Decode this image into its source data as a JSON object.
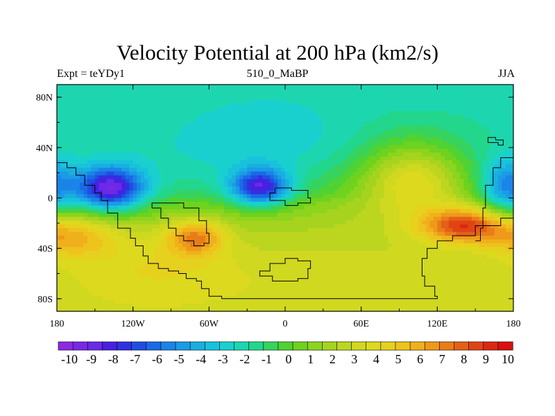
{
  "chart_data": {
    "type": "heatmap",
    "title": "Velocity Potential at 200 hPa (km2/s)",
    "subtitle_left": "Expt = teYDy1",
    "subtitle_center": "510_0_MaBP",
    "subtitle_right": "JJA",
    "xlim": [
      -180,
      180
    ],
    "ylim": [
      -90,
      90
    ],
    "x_ticks": [
      {
        "value": -180,
        "label": "180"
      },
      {
        "value": -120,
        "label": "120W"
      },
      {
        "value": -60,
        "label": "60W"
      },
      {
        "value": 0,
        "label": "0"
      },
      {
        "value": 60,
        "label": "60E"
      },
      {
        "value": 120,
        "label": "120E"
      },
      {
        "value": 180,
        "label": "180"
      }
    ],
    "y_ticks": [
      {
        "value": 80,
        "label": "80N"
      },
      {
        "value": 40,
        "label": "40N"
      },
      {
        "value": 0,
        "label": "0"
      },
      {
        "value": -40,
        "label": "40S"
      },
      {
        "value": -80,
        "label": "80S"
      }
    ],
    "colorbar": {
      "labels": [
        "-10",
        "-9",
        "-8",
        "-7",
        "-6",
        "-5",
        "-4",
        "-3",
        "-2",
        "-1",
        "0",
        "1",
        "2",
        "3",
        "4",
        "5",
        "6",
        "7",
        "8",
        "9",
        "10"
      ],
      "colors": [
        "#8a2be2",
        "#7a28e6",
        "#6a2ae8",
        "#4a1fe0",
        "#3030e0",
        "#1f4fe0",
        "#1a6ae6",
        "#1a84e8",
        "#1b9be6",
        "#19afe0",
        "#18c2dc",
        "#1ad0cf",
        "#1dd6b0",
        "#22d68c",
        "#36d35f",
        "#4fd234",
        "#6ed21e",
        "#8cd41e",
        "#a6d41e",
        "#bcd620",
        "#d0d820",
        "#dcd91e",
        "#e6d11e",
        "#eec31c",
        "#f0b01c",
        "#ee991a",
        "#ea7c18",
        "#e46016",
        "#e04414",
        "#dc2812",
        "#d81010"
      ]
    },
    "fields": [
      {
        "lon": -138,
        "lat": 8,
        "value": -9.0,
        "sx": 19,
        "sy": 12
      },
      {
        "lon": -20,
        "lat": 9,
        "value": -7.5,
        "sx": 16,
        "sy": 10
      },
      {
        "lon": 175,
        "lat": 10,
        "value": -5.0,
        "sx": 14,
        "sy": 16
      },
      {
        "lon": -90,
        "lat": 50,
        "value": -2.0,
        "sx": 70,
        "sy": 30
      },
      {
        "lon": -10,
        "lat": 55,
        "value": -2.5,
        "sx": 60,
        "sy": 28
      },
      {
        "lon": 140,
        "lat": -22,
        "value": 8.5,
        "sx": 24,
        "sy": 10
      },
      {
        "lon": -70,
        "lat": -32,
        "value": 6.5,
        "sx": 16,
        "sy": 10
      },
      {
        "lon": -170,
        "lat": -32,
        "value": 5.5,
        "sx": 25,
        "sy": 12
      },
      {
        "lon": 100,
        "lat": 10,
        "value": 4.5,
        "sx": 28,
        "sy": 22
      },
      {
        "lon": 0,
        "lat": -75,
        "value": 3.5,
        "sx": 170,
        "sy": 18
      },
      {
        "lon": -100,
        "lat": -55,
        "value": 4.0,
        "sx": 50,
        "sy": 25
      }
    ],
    "base_field": {
      "n_pole": -2.2,
      "s_pole": 3.6,
      "equator": 0.5
    },
    "coastlines": [
      [
        [
          -180,
          28
        ],
        [
          -172,
          24
        ],
        [
          -165,
          18
        ],
        [
          -158,
          10
        ],
        [
          -150,
          4
        ],
        [
          -145,
          -2
        ],
        [
          -140,
          -12
        ],
        [
          -132,
          -24
        ],
        [
          -122,
          -32
        ],
        [
          -118,
          -38
        ],
        [
          -112,
          -46
        ],
        [
          -108,
          -52
        ],
        [
          -100,
          -56
        ],
        [
          -92,
          -58
        ],
        [
          -84,
          -60
        ],
        [
          -78,
          -64
        ],
        [
          -70,
          -66
        ],
        [
          -66,
          -72
        ],
        [
          -60,
          -78
        ],
        [
          -50,
          -80
        ],
        [
          -30,
          -80
        ],
        [
          -10,
          -80
        ],
        [
          20,
          -80
        ],
        [
          60,
          -80
        ],
        [
          100,
          -80
        ],
        [
          120,
          -78
        ],
        [
          118,
          -70
        ],
        [
          110,
          -62
        ],
        [
          108,
          -48
        ],
        [
          112,
          -40
        ],
        [
          120,
          -34
        ],
        [
          132,
          -30
        ],
        [
          150,
          -22
        ],
        [
          170,
          -16
        ],
        [
          180,
          -14
        ]
      ],
      [
        [
          -105,
          -8
        ],
        [
          -98,
          -16
        ],
        [
          -92,
          -24
        ],
        [
          -86,
          -30
        ],
        [
          -80,
          -34
        ],
        [
          -72,
          -38
        ],
        [
          -64,
          -36
        ],
        [
          -60,
          -28
        ],
        [
          -62,
          -18
        ],
        [
          -68,
          -8
        ],
        [
          -80,
          -4
        ],
        [
          -94,
          -4
        ],
        [
          -105,
          -8
        ]
      ],
      [
        [
          -10,
          -52
        ],
        [
          0,
          -48
        ],
        [
          10,
          -50
        ],
        [
          20,
          -56
        ],
        [
          18,
          -64
        ],
        [
          10,
          -66
        ],
        [
          -10,
          -62
        ],
        [
          -20,
          -58
        ],
        [
          -12,
          -52
        ],
        [
          -10,
          -52
        ]
      ],
      [
        [
          -12,
          -2
        ],
        [
          0,
          -6
        ],
        [
          10,
          -4
        ],
        [
          20,
          0
        ],
        [
          18,
          6
        ],
        [
          5,
          8
        ],
        [
          -8,
          4
        ],
        [
          -12,
          -2
        ]
      ],
      [
        [
          150,
          -34
        ],
        [
          154,
          -24
        ],
        [
          156,
          -8
        ],
        [
          158,
          10
        ],
        [
          164,
          24
        ],
        [
          170,
          32
        ],
        [
          180,
          30
        ]
      ],
      [
        [
          160,
          44
        ],
        [
          168,
          42
        ],
        [
          172,
          46
        ],
        [
          166,
          48
        ],
        [
          160,
          44
        ]
      ]
    ]
  }
}
